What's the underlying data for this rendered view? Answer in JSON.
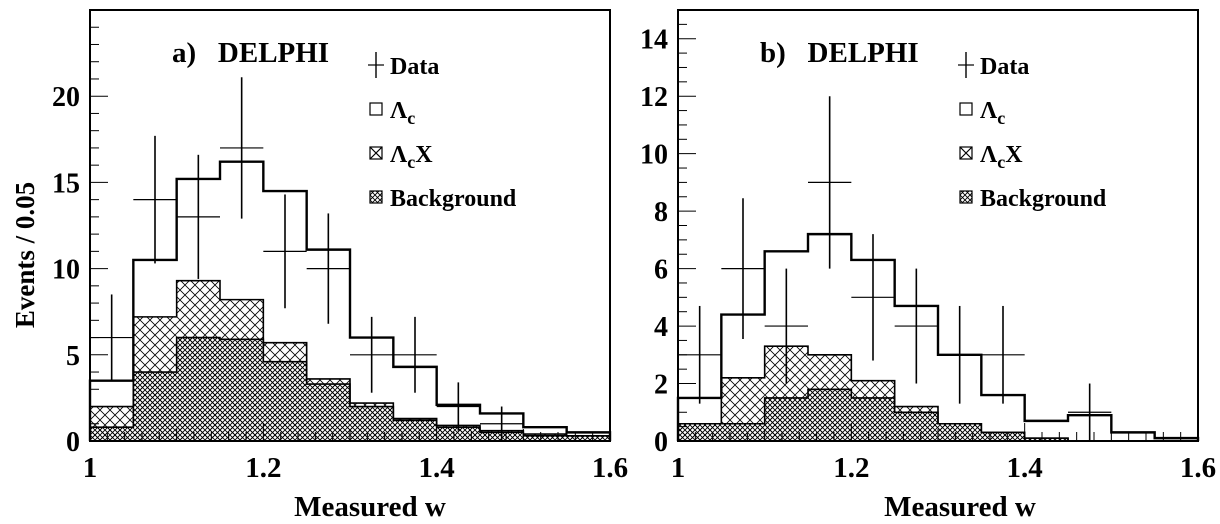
{
  "ylabel": "Events / 0.05",
  "xlabel": "Measured w",
  "legend": {
    "data": "Data",
    "lc_sym": "Λ",
    "lc_sub": "c",
    "lcx_sym": "Λ",
    "lcx_sub": "c",
    "lcx_tail": "X",
    "bkg": "Background"
  },
  "colors": {
    "frame": "#000000",
    "hatch": "#000000"
  },
  "chart_data": [
    {
      "type": "histogram",
      "title": "a)   DELPHI",
      "xlim": [
        1.0,
        1.6
      ],
      "ylim": [
        0,
        25
      ],
      "xticks": [
        "1",
        "1.2",
        "1.4",
        "1.6"
      ],
      "xtick_values": [
        1.0,
        1.2,
        1.4,
        1.6
      ],
      "yticks": [
        "0",
        "5",
        "10",
        "15",
        "20"
      ],
      "ytick_values": [
        0,
        5,
        10,
        15,
        20
      ],
      "bin_edges": [
        1.0,
        1.05,
        1.1,
        1.15,
        1.2,
        1.25,
        1.3,
        1.35,
        1.4,
        1.45,
        1.5,
        1.55,
        1.6
      ],
      "stack_total": [
        3.5,
        10.5,
        15.2,
        16.2,
        14.5,
        11.1,
        6.0,
        4.3,
        2.1,
        1.6,
        0.8,
        0.5
      ],
      "lambda_c_x": [
        2.0,
        7.2,
        9.3,
        8.2,
        5.7,
        3.6,
        2.2,
        1.3,
        0.9,
        0.6,
        0.4,
        0.3
      ],
      "background": [
        0.8,
        4.0,
        6.0,
        5.9,
        4.6,
        3.3,
        2.0,
        1.2,
        0.8,
        0.5,
        0.3,
        0.3
      ],
      "data": [
        {
          "x": 1.025,
          "y": 6,
          "err": 2.5
        },
        {
          "x": 1.075,
          "y": 14,
          "err": 3.7
        },
        {
          "x": 1.125,
          "y": 13,
          "err": 3.6
        },
        {
          "x": 1.175,
          "y": 17,
          "err": 4.1
        },
        {
          "x": 1.225,
          "y": 11,
          "err": 3.3
        },
        {
          "x": 1.275,
          "y": 10,
          "err": 3.2
        },
        {
          "x": 1.325,
          "y": 5,
          "err": 2.2
        },
        {
          "x": 1.375,
          "y": 5,
          "err": 2.2
        },
        {
          "x": 1.425,
          "y": 2,
          "err": 1.4
        },
        {
          "x": 1.475,
          "y": 1,
          "err": 1.0
        }
      ]
    },
    {
      "type": "histogram",
      "title": "b)   DELPHI",
      "xlim": [
        1.0,
        1.6
      ],
      "ylim": [
        0,
        15
      ],
      "xticks": [
        "1",
        "1.2",
        "1.4",
        "1.6"
      ],
      "xtick_values": [
        1.0,
        1.2,
        1.4,
        1.6
      ],
      "yticks": [
        "0",
        "2",
        "4",
        "6",
        "8",
        "10",
        "12",
        "14"
      ],
      "ytick_values": [
        0,
        2,
        4,
        6,
        8,
        10,
        12,
        14
      ],
      "bin_edges": [
        1.0,
        1.05,
        1.1,
        1.15,
        1.2,
        1.25,
        1.3,
        1.35,
        1.4,
        1.45,
        1.5,
        1.55,
        1.6
      ],
      "stack_total": [
        1.5,
        4.4,
        6.6,
        7.2,
        6.3,
        4.7,
        3.0,
        1.6,
        0.7,
        0.9,
        0.3,
        0.1
      ],
      "lambda_c_x": [
        0.6,
        2.2,
        3.3,
        3.0,
        2.1,
        1.2,
        0.6,
        0.3,
        0.1,
        0.0,
        0.0,
        0.0
      ],
      "background": [
        0.6,
        0.6,
        1.5,
        1.8,
        1.5,
        1.0,
        0.6,
        0.3,
        0.1,
        0.0,
        0.0,
        0.0
      ],
      "data": [
        {
          "x": 1.025,
          "y": 3,
          "err": 1.7
        },
        {
          "x": 1.075,
          "y": 6,
          "err": 2.45
        },
        {
          "x": 1.125,
          "y": 4,
          "err": 2.0
        },
        {
          "x": 1.175,
          "y": 9,
          "err": 3.0
        },
        {
          "x": 1.225,
          "y": 5,
          "err": 2.2
        },
        {
          "x": 1.275,
          "y": 4,
          "err": 2.0
        },
        {
          "x": 1.325,
          "y": 3,
          "err": 1.7
        },
        {
          "x": 1.375,
          "y": 3,
          "err": 1.7
        },
        {
          "x": 1.475,
          "y": 1,
          "err": 1.0
        }
      ]
    }
  ]
}
